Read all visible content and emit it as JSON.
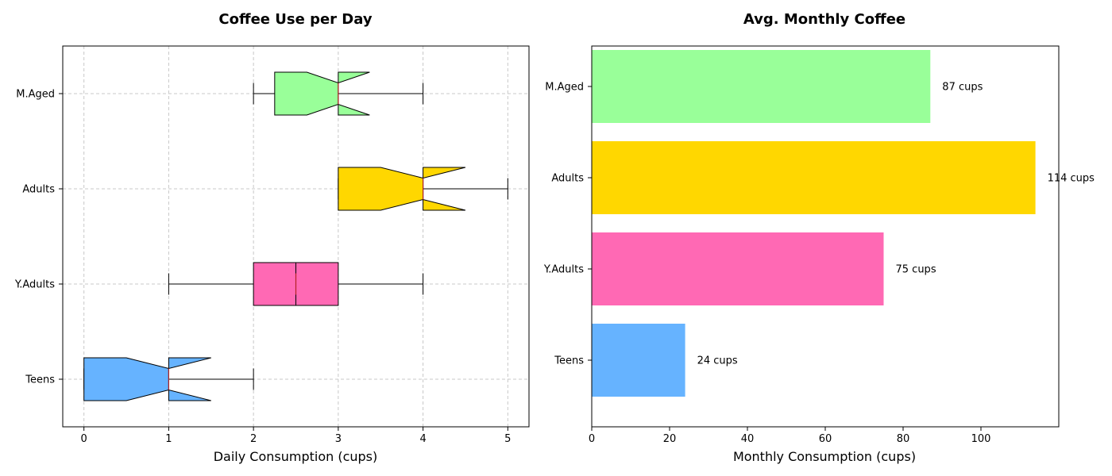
{
  "chart_data": [
    {
      "type": "box",
      "orientation": "horizontal",
      "notched": true,
      "title": "Coffee Use per Day",
      "xlabel": "Daily Consumption (cups)",
      "ylabel": "",
      "xlim": [
        -0.25,
        5.25
      ],
      "xticks": [
        0,
        1,
        2,
        3,
        4,
        5
      ],
      "grid": true,
      "categories": [
        "Teens",
        "Y.Adults",
        "Adults",
        "M.Aged"
      ],
      "boxes": [
        {
          "category": "Teens",
          "whislo": 0,
          "q1": 0,
          "med": 1,
          "q3": 1,
          "whishi": 2,
          "notch_lo": 0.5,
          "notch_hi": 1.5,
          "color": "#66b3ff"
        },
        {
          "category": "Y.Adults",
          "whislo": 1,
          "q1": 2,
          "med": 2.5,
          "q3": 3,
          "whishi": 4,
          "notch_lo": 2.5,
          "notch_hi": 2.5,
          "color": "#ff69b4"
        },
        {
          "category": "Adults",
          "whislo": 3,
          "q1": 3,
          "med": 4,
          "q3": 4,
          "whishi": 5,
          "notch_lo": 3.5,
          "notch_hi": 4.5,
          "color": "#ffd700"
        },
        {
          "category": "M.Aged",
          "whislo": 2,
          "q1": 2.25,
          "med": 3,
          "q3": 3,
          "whishi": 4,
          "notch_lo": 2.63,
          "notch_hi": 3.37,
          "color": "#99ff99"
        }
      ],
      "median_color": "#b22222"
    },
    {
      "type": "bar",
      "orientation": "horizontal",
      "title": "Avg. Monthly Coffee",
      "xlabel": "Monthly Consumption (cups)",
      "ylabel": "",
      "xlim": [
        0,
        120
      ],
      "xticks": [
        0,
        20,
        40,
        60,
        80,
        100
      ],
      "grid": false,
      "categories": [
        "Teens",
        "Y.Adults",
        "Adults",
        "M.Aged"
      ],
      "values": [
        24,
        75,
        114,
        87
      ],
      "labels": [
        "24 cups",
        "75 cups",
        "114 cups",
        "87 cups"
      ],
      "colors": [
        "#66b3ff",
        "#ff69b4",
        "#ffd700",
        "#99ff99"
      ]
    }
  ]
}
